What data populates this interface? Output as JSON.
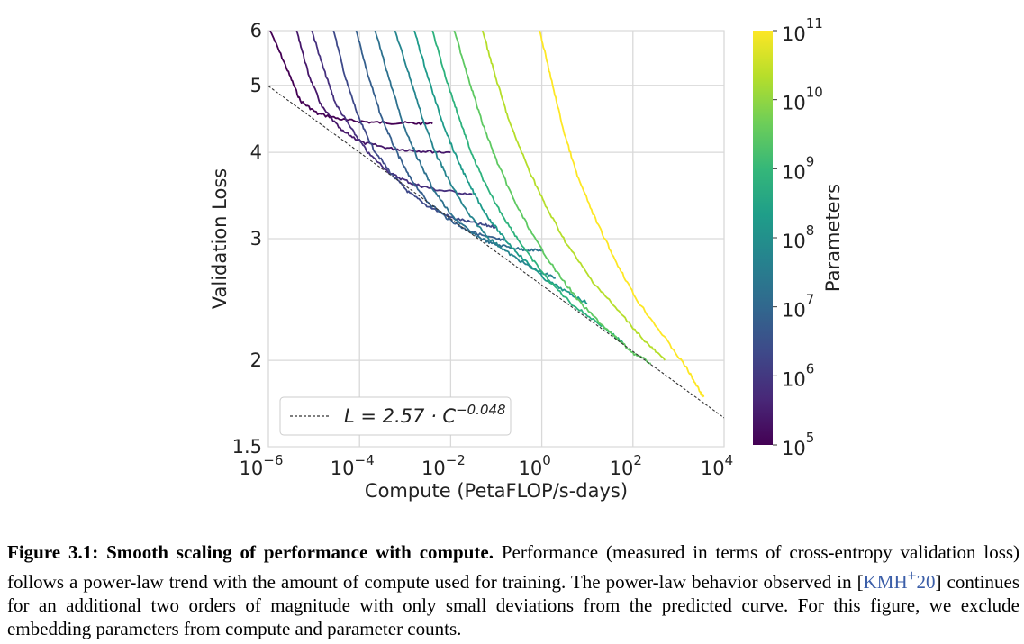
{
  "chart_data": {
    "type": "line",
    "xscale": "log",
    "yscale": "log",
    "xlim": [
      1e-06,
      10000
    ],
    "ylim": [
      1.5,
      6
    ],
    "xlabel": "Compute (PetaFLOP/s-days)",
    "ylabel": "Validation Loss",
    "x_tick_labels": [
      {
        "base": "10",
        "exp": "−6"
      },
      {
        "base": "10",
        "exp": "−4"
      },
      {
        "base": "10",
        "exp": "−2"
      },
      {
        "base": "10",
        "exp": "0"
      },
      {
        "base": "10",
        "exp": "2"
      },
      {
        "base": "10",
        "exp": "4"
      }
    ],
    "x_tick_values": [
      1e-06,
      0.0001,
      0.01,
      1,
      100,
      10000
    ],
    "y_tick_labels": [
      "1.5",
      "2",
      "3",
      "4",
      "5",
      "6"
    ],
    "y_tick_values": [
      1.5,
      2,
      3,
      4,
      5,
      6
    ],
    "grid": true,
    "fit_line": {
      "label": "L = 2.57 · C",
      "exponent": "−0.048",
      "a": 2.57,
      "b": -0.048,
      "style": "dashed",
      "color": "#333333"
    },
    "legend_position": "bottom-left",
    "colorbar": {
      "label": "Parameters",
      "scale": "log",
      "range": [
        100000,
        100000000000
      ],
      "tick_exponents": [
        "5",
        "6",
        "7",
        "8",
        "9",
        "10",
        "11"
      ],
      "tick_base": "10",
      "colormap": [
        "#440154",
        "#482878",
        "#3e4989",
        "#31688e",
        "#26828e",
        "#1f9e89",
        "#35b779",
        "#6ece58",
        "#b5de2b",
        "#fde725"
      ]
    },
    "series": [
      {
        "params": 100000,
        "color": "#440154",
        "points": [
          [
            1.1e-06,
            6.0
          ],
          [
            2.5e-06,
            5.3
          ],
          [
            5e-06,
            4.75
          ],
          [
            1.2e-05,
            4.55
          ],
          [
            5e-05,
            4.45
          ],
          [
            0.0002,
            4.42
          ],
          [
            0.001,
            4.41
          ],
          [
            0.004,
            4.4
          ]
        ]
      },
      {
        "params": 300000,
        "color": "#46176a",
        "points": [
          [
            4.2e-06,
            6.0
          ],
          [
            7.5e-06,
            5.2
          ],
          [
            1.5e-05,
            4.65
          ],
          [
            4e-05,
            4.3
          ],
          [
            0.00012,
            4.13
          ],
          [
            0.0005,
            4.05
          ],
          [
            0.002,
            4.02
          ],
          [
            0.01,
            4.0
          ]
        ]
      },
      {
        "params": 1000000,
        "color": "#46307e",
        "points": [
          [
            9e-06,
            6.0
          ],
          [
            1.6e-05,
            5.3
          ],
          [
            3e-05,
            4.7
          ],
          [
            7e-05,
            4.3
          ],
          [
            0.00016,
            3.98
          ],
          [
            0.0005,
            3.72
          ],
          [
            0.0015,
            3.6
          ],
          [
            0.005,
            3.53
          ],
          [
            0.03,
            3.48
          ]
        ]
      },
      {
        "params": 3000000,
        "color": "#3e4989",
        "points": [
          [
            2.7e-05,
            6.0
          ],
          [
            5e-05,
            5.1
          ],
          [
            0.0001,
            4.45
          ],
          [
            0.0002,
            4.05
          ],
          [
            0.0005,
            3.72
          ],
          [
            0.0012,
            3.5
          ],
          [
            0.003,
            3.35
          ],
          [
            0.01,
            3.22
          ],
          [
            0.04,
            3.15
          ],
          [
            0.1,
            3.12
          ]
        ]
      },
      {
        "params": 8000000,
        "color": "#355f8d",
        "points": [
          [
            8.5e-05,
            6.0
          ],
          [
            0.00015,
            5.2
          ],
          [
            0.0003,
            4.5
          ],
          [
            0.0006,
            4.05
          ],
          [
            0.0012,
            3.7
          ],
          [
            0.003,
            3.4
          ],
          [
            0.008,
            3.22
          ],
          [
            0.02,
            3.1
          ],
          [
            0.06,
            3.02
          ],
          [
            0.15,
            2.98
          ]
        ]
      },
      {
        "params": 20000000,
        "color": "#2d718e",
        "points": [
          [
            0.00022,
            6.0
          ],
          [
            0.00045,
            5.1
          ],
          [
            0.0009,
            4.4
          ],
          [
            0.0018,
            3.95
          ],
          [
            0.004,
            3.55
          ],
          [
            0.01,
            3.25
          ],
          [
            0.03,
            3.05
          ],
          [
            0.08,
            2.95
          ],
          [
            0.3,
            2.9
          ],
          [
            1.0,
            2.88
          ]
        ]
      },
      {
        "params": 50000000,
        "color": "#25858e",
        "points": [
          [
            0.0006,
            6.0
          ],
          [
            0.0012,
            5.2
          ],
          [
            0.0025,
            4.45
          ],
          [
            0.005,
            3.95
          ],
          [
            0.01,
            3.6
          ],
          [
            0.025,
            3.25
          ],
          [
            0.07,
            3.0
          ],
          [
            0.2,
            2.85
          ],
          [
            0.6,
            2.72
          ],
          [
            2.0,
            2.63
          ]
        ]
      },
      {
        "params": 150000000,
        "color": "#1e9b8a",
        "points": [
          [
            0.0016,
            6.0
          ],
          [
            0.003,
            5.2
          ],
          [
            0.006,
            4.5
          ],
          [
            0.012,
            4.0
          ],
          [
            0.025,
            3.6
          ],
          [
            0.06,
            3.25
          ],
          [
            0.15,
            3.0
          ],
          [
            0.4,
            2.8
          ],
          [
            1.2,
            2.62
          ],
          [
            4.0,
            2.5
          ],
          [
            10,
            2.42
          ]
        ]
      },
      {
        "params": 400000000,
        "color": "#2db27d",
        "points": [
          [
            0.004,
            6.0
          ],
          [
            0.008,
            5.1
          ],
          [
            0.016,
            4.45
          ],
          [
            0.03,
            3.95
          ],
          [
            0.07,
            3.5
          ],
          [
            0.18,
            3.15
          ],
          [
            0.5,
            2.85
          ],
          [
            1.5,
            2.6
          ],
          [
            5,
            2.4
          ],
          [
            20,
            2.25
          ],
          [
            60,
            2.12
          ]
        ]
      },
      {
        "params": 1300000000,
        "color": "#5ec962",
        "points": [
          [
            0.012,
            6.0
          ],
          [
            0.025,
            5.1
          ],
          [
            0.05,
            4.4
          ],
          [
            0.1,
            3.9
          ],
          [
            0.25,
            3.4
          ],
          [
            0.7,
            3.0
          ],
          [
            2.0,
            2.7
          ],
          [
            7,
            2.42
          ],
          [
            30,
            2.2
          ],
          [
            100,
            2.05
          ],
          [
            250,
            1.98
          ]
        ]
      },
      {
        "params": 13000000000,
        "color": "#b5de2b",
        "points": [
          [
            0.05,
            6.0
          ],
          [
            0.1,
            5.1
          ],
          [
            0.2,
            4.4
          ],
          [
            0.5,
            3.8
          ],
          [
            1.2,
            3.35
          ],
          [
            3.5,
            2.95
          ],
          [
            12,
            2.62
          ],
          [
            50,
            2.35
          ],
          [
            200,
            2.12
          ],
          [
            500,
            2.0
          ]
        ]
      },
      {
        "params": 175000000000,
        "color": "#fde725",
        "points": [
          [
            0.9,
            6.0
          ],
          [
            1.5,
            5.2
          ],
          [
            3,
            4.3
          ],
          [
            6,
            3.7
          ],
          [
            15,
            3.2
          ],
          [
            40,
            2.8
          ],
          [
            120,
            2.45
          ],
          [
            400,
            2.2
          ],
          [
            1500,
            1.95
          ],
          [
            3000,
            1.8
          ],
          [
            3600,
            1.77
          ]
        ]
      }
    ]
  },
  "caption": {
    "label": "Figure 3.1:",
    "title": "Smooth scaling of performance with compute.",
    "text1": "Performance (measured in terms of cross-entropy validation loss) follows a power-law trend with the amount of compute used for training. The power-law behavior observed in [",
    "cite_base": "KMH",
    "cite_sup": "+",
    "cite_year": "20",
    "text2": "] continues for an additional two orders of magnitude with only small deviations from the predicted curve. For this figure, we exclude embedding parameters from compute and parameter counts."
  }
}
